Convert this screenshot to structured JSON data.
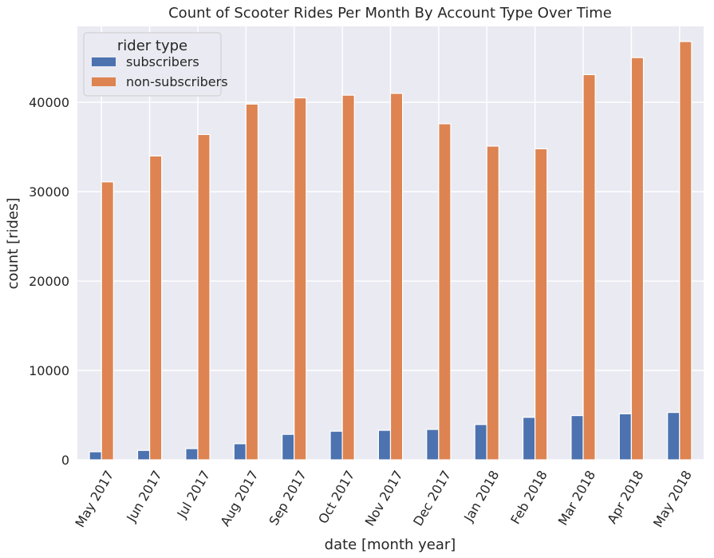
{
  "chart_data": {
    "type": "bar",
    "title": "Count of Scooter Rides Per Month By Account Type Over Time",
    "xlabel": "date [month year]",
    "ylabel": "count [rides]",
    "categories": [
      "May 2017",
      "Jun 2017",
      "Jul 2017",
      "Aug 2017",
      "Sep 2017",
      "Oct 2017",
      "Nov 2017",
      "Dec 2017",
      "Jan 2018",
      "Feb 2018",
      "Mar 2018",
      "Apr 2018",
      "May 2018"
    ],
    "series": [
      {
        "name": "subscribers",
        "color": "#4c72b0",
        "values": [
          900,
          1050,
          1250,
          1800,
          2850,
          3200,
          3300,
          3400,
          3950,
          4750,
          4950,
          5150,
          5300
        ]
      },
      {
        "name": "non-subscribers",
        "color": "#dd8452",
        "values": [
          31100,
          34000,
          36400,
          39800,
          40500,
          40800,
          41000,
          37600,
          35100,
          34800,
          43100,
          45000,
          46800
        ]
      }
    ],
    "ylim": [
      0,
      48500
    ],
    "yticks": [
      0,
      10000,
      20000,
      30000,
      40000
    ],
    "legend": {
      "title": "rider type",
      "placement": "top-left"
    },
    "grid": true,
    "background": "#eaeaf2"
  }
}
